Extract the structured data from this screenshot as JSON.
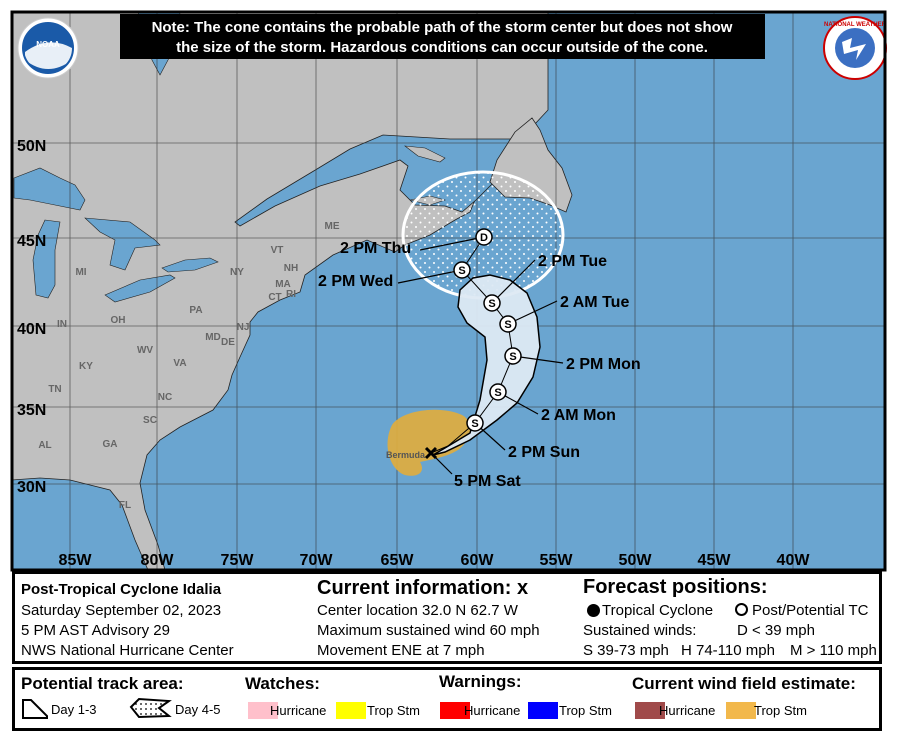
{
  "note": {
    "line1": "Note: The cone contains the probable path of the storm center but does not show",
    "line2": "the size of the storm. Hazardous conditions can occur outside of the cone."
  },
  "logos": {
    "left": "NOAA",
    "right": "NATIONAL WEATHER SERVICE"
  },
  "map": {
    "colors": {
      "ocean": "#6aa5d0",
      "land": "#c0c0c0",
      "cone_day13": "#dde9f3",
      "wind_trop_stm": "#e0ad3e"
    },
    "lat_labels": [
      "50N",
      "45N",
      "40N",
      "35N",
      "30N"
    ],
    "lon_labels": [
      "85W",
      "80W",
      "75W",
      "70W",
      "65W",
      "60W",
      "55W",
      "50W",
      "45W",
      "40W"
    ],
    "state_labels": [
      "MI",
      "IN",
      "OH",
      "KY",
      "TN",
      "AL",
      "GA",
      "SC",
      "NC",
      "VA",
      "WV",
      "PA",
      "NY",
      "VT",
      "NH",
      "MA",
      "CT",
      "RI",
      "NJ",
      "MD",
      "DE",
      "FL",
      "ME"
    ],
    "place_label": "Bermuda",
    "current_marker": "x-icon",
    "forecast_points": [
      {
        "letter": "S",
        "label": "2 PM Sun"
      },
      {
        "letter": "S",
        "label": "2 AM Mon"
      },
      {
        "letter": "S",
        "label": "2 PM Mon"
      },
      {
        "letter": "S",
        "label": "2 AM Tue"
      },
      {
        "letter": "S",
        "label": "2 PM Tue"
      },
      {
        "letter": "S",
        "label": "2 PM Wed"
      },
      {
        "letter": "D",
        "label": "2 PM Thu"
      }
    ],
    "current_label": "5 PM Sat"
  },
  "info": {
    "storm_name": "Post-Tropical Cyclone Idalia",
    "date": "Saturday September 02, 2023",
    "advisory": "5 PM AST Advisory 29",
    "center": "NWS National Hurricane Center",
    "current_title": "Current information:",
    "current_icon": "x",
    "location": "Center location 32.0 N 62.7 W",
    "wind": "Maximum sustained wind 60 mph",
    "movement": "Movement ENE at 7 mph",
    "forecast_title": "Forecast positions:",
    "tropical_cyclone": "Tropical Cyclone",
    "post_potential": "Post/Potential TC",
    "sustained": "Sustained winds:",
    "d": "D < 39 mph",
    "s": "S 39-73 mph",
    "hh": "H 74-110 mph",
    "m": "M > 110 mph"
  },
  "legend": {
    "track_title": "Potential track area:",
    "day13": "Day 1-3",
    "day45": "Day 4-5",
    "watches_title": "Watches:",
    "warnings_title": "Warnings:",
    "wind_title": "Current wind field estimate:",
    "hurricane": "Hurricane",
    "trop_stm": "Trop Stm",
    "colors": {
      "watch_hurricane": "#ffc0cb",
      "watch_trop_stm": "#ffff00",
      "warn_hurricane": "#ff0000",
      "warn_trop_stm": "#0000ff",
      "wind_hurricane": "#a04a4a",
      "wind_trop_stm": "#f2b84b"
    }
  }
}
